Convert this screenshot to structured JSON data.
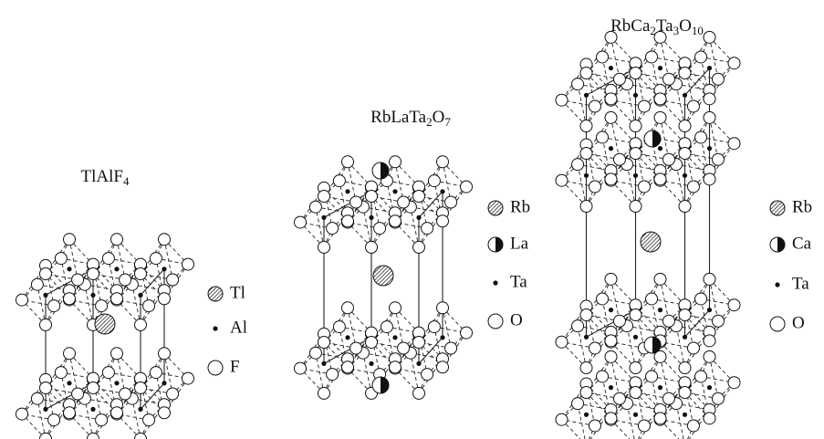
{
  "structures": [
    {
      "formula": [
        "TlAlF",
        "4"
      ],
      "legend": [
        "Tl",
        "Al",
        "F"
      ]
    },
    {
      "formula": [
        "RbLaTa",
        "2",
        "O",
        "7"
      ],
      "legend": [
        "Rb",
        "La",
        "Ta",
        "O"
      ]
    },
    {
      "formula": [
        "RbCa",
        "2",
        "Ta",
        "3",
        "O",
        "10"
      ],
      "legend": [
        "Rb",
        "Ca",
        "Ta",
        "O"
      ]
    }
  ]
}
